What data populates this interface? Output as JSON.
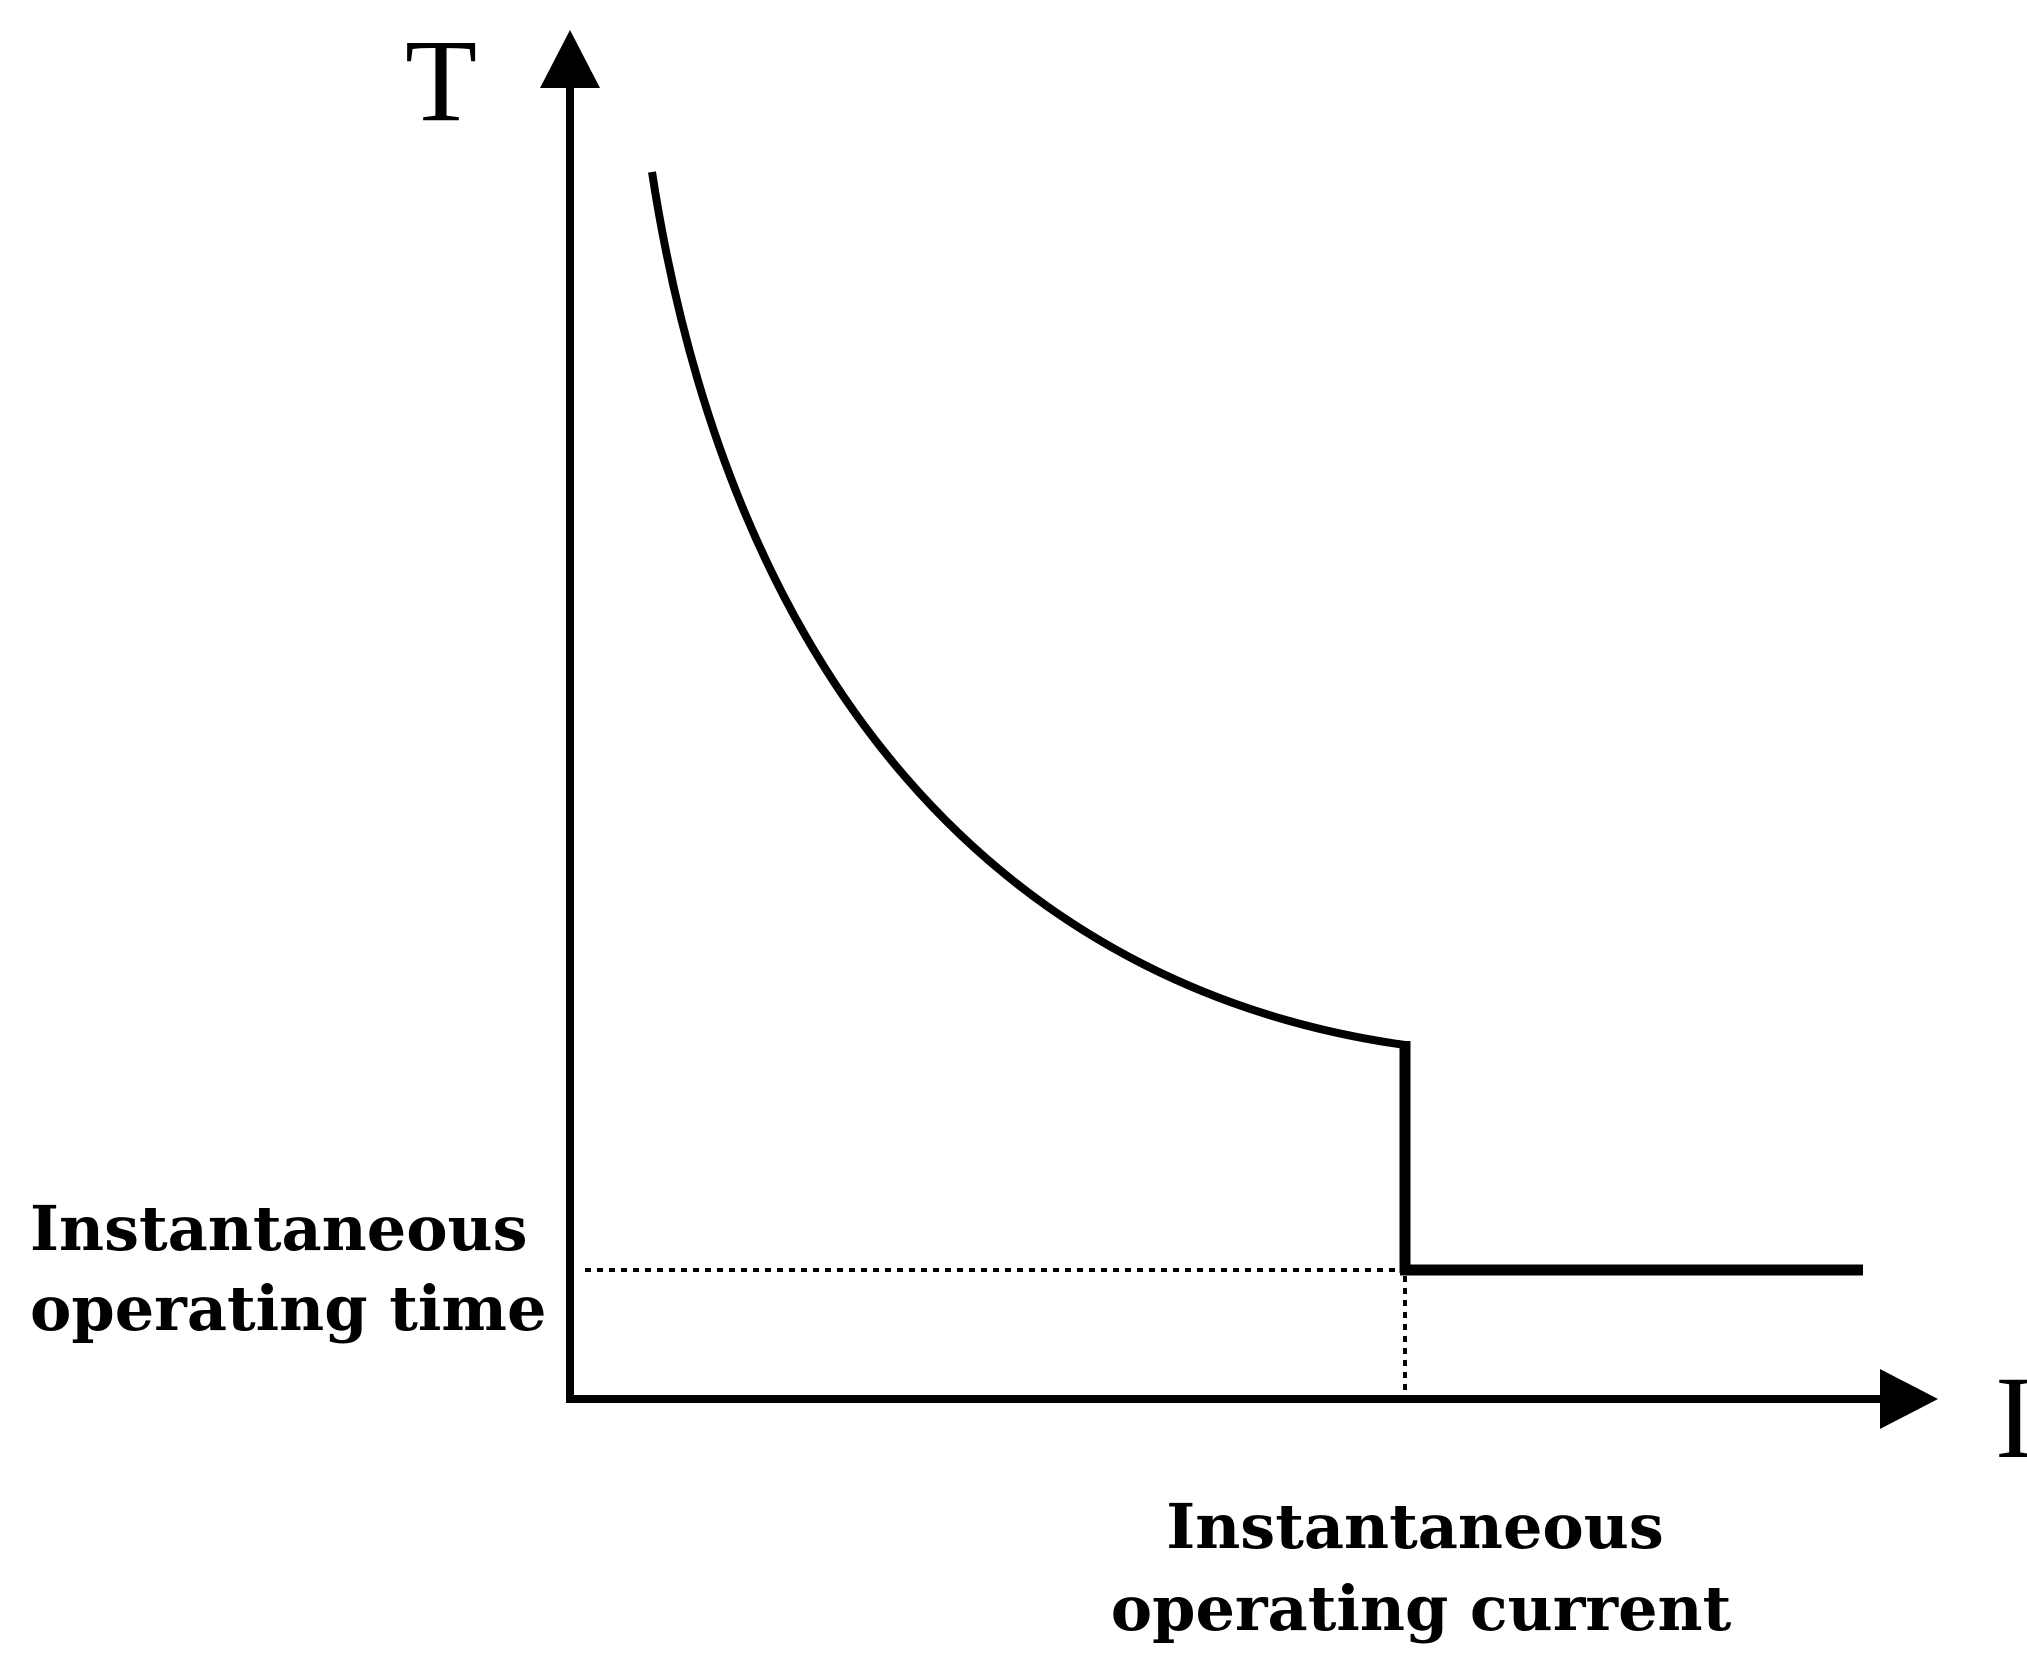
{
  "axes": {
    "y_label": "T",
    "x_label": "I"
  },
  "labels": {
    "time_line1": "Instantaneous",
    "time_line2": "operating time",
    "current_line1": "Instantaneous",
    "current_line2": "operating current"
  },
  "colors": {
    "stroke": "#000000",
    "background": "#ffffff"
  }
}
